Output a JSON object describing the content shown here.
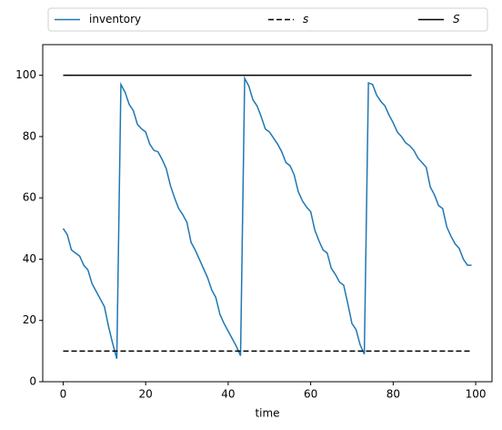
{
  "chart_data": {
    "type": "line",
    "xlabel": "time",
    "x": [
      0,
      1,
      2,
      3,
      4,
      5,
      6,
      7,
      8,
      9,
      10,
      11,
      12,
      13,
      14,
      15,
      16,
      17,
      18,
      19,
      20,
      21,
      22,
      23,
      24,
      25,
      26,
      27,
      28,
      29,
      30,
      31,
      32,
      33,
      34,
      35,
      36,
      37,
      38,
      39,
      40,
      41,
      42,
      43,
      44,
      45,
      46,
      47,
      48,
      49,
      50,
      51,
      52,
      53,
      54,
      55,
      56,
      57,
      58,
      59,
      60,
      61,
      62,
      63,
      64,
      65,
      66,
      67,
      68,
      69,
      70,
      71,
      72,
      73,
      74,
      75,
      76,
      77,
      78,
      79,
      80,
      81,
      82,
      83,
      84,
      85,
      86,
      87,
      88,
      89,
      90,
      91,
      92,
      93,
      94,
      95,
      96,
      97,
      98,
      99
    ],
    "series": [
      {
        "name": "inventory",
        "color": "#1f77b4",
        "dash": "solid",
        "values": [
          50,
          48,
          43,
          42,
          41,
          38,
          36.5,
          32,
          29.5,
          27,
          24.5,
          18,
          12.5,
          7.5,
          97,
          94.5,
          90.5,
          88.5,
          84,
          82.5,
          81.5,
          77.5,
          75.5,
          75,
          72.5,
          69.5,
          64,
          60,
          56.5,
          54.5,
          52,
          45.5,
          43,
          40,
          37,
          34,
          30,
          27.5,
          22,
          19,
          16.5,
          14,
          11.5,
          8.5,
          99,
          96.5,
          92,
          90,
          86.5,
          82.5,
          81.5,
          79.5,
          77.5,
          75,
          71.5,
          70.5,
          67.5,
          62,
          59,
          57,
          55.5,
          49.5,
          46,
          43,
          42,
          37,
          35,
          32.5,
          31.5,
          25.5,
          19,
          17,
          12,
          9,
          97.5,
          97,
          93.5,
          91.5,
          90,
          87,
          84.5,
          81.5,
          80,
          78,
          77,
          75.5,
          73,
          71.5,
          70,
          63.5,
          61,
          57.5,
          56.5,
          50.5,
          47.5,
          45,
          43.5,
          40,
          38,
          38
        ]
      },
      {
        "name": "s",
        "color": "#000000",
        "dash": "dashed",
        "x": [
          0,
          99
        ],
        "values": [
          10,
          10
        ]
      },
      {
        "name": "S",
        "color": "#000000",
        "dash": "solid",
        "x": [
          0,
          99
        ],
        "values": [
          100,
          100
        ]
      }
    ],
    "xlim": [
      -4.95,
      103.95
    ],
    "ylim": [
      0,
      110
    ],
    "xticks": [
      0,
      20,
      40,
      60,
      80,
      100
    ],
    "yticks": [
      0,
      20,
      40,
      60,
      80,
      100
    ],
    "grid": false,
    "legend": "top"
  }
}
